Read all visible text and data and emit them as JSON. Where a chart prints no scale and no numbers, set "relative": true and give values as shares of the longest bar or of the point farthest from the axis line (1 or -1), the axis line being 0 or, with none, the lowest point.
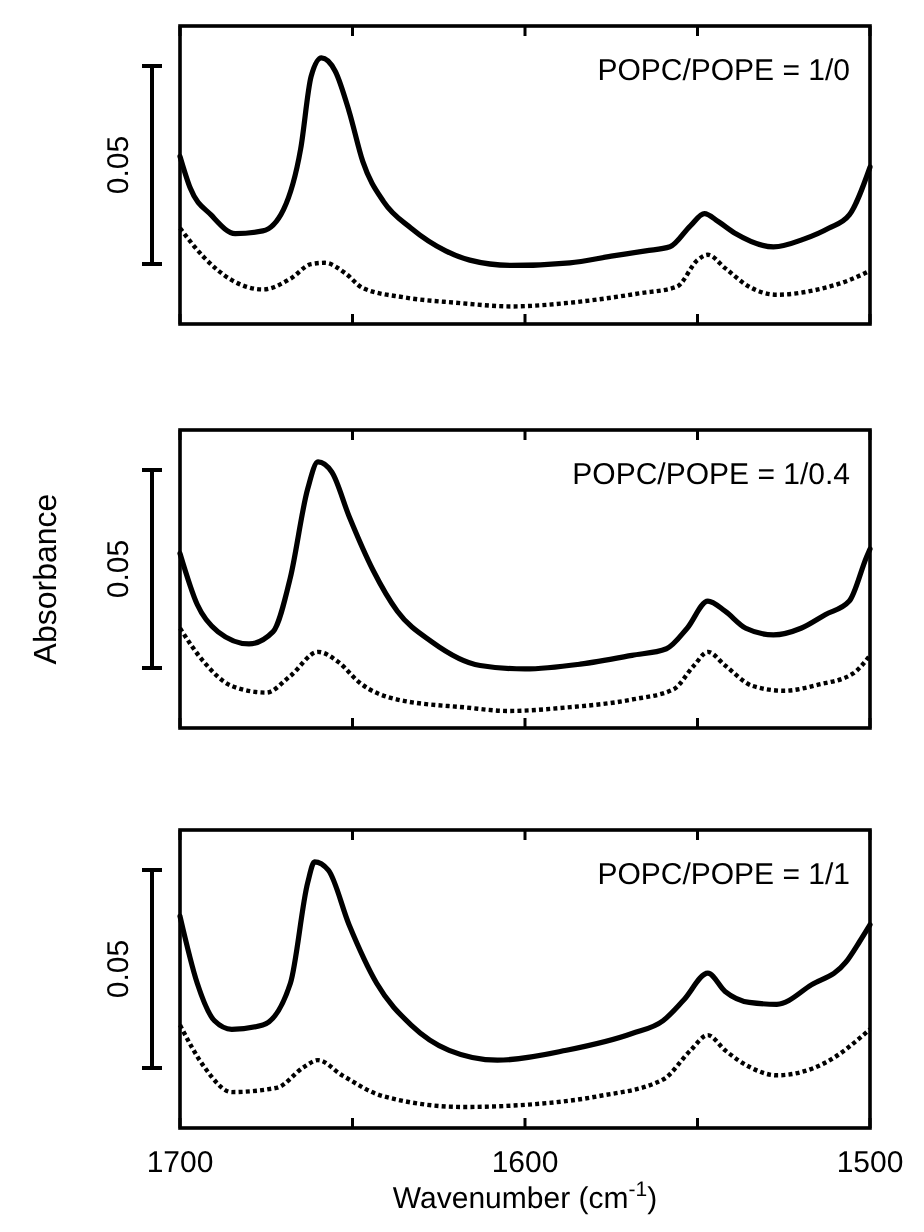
{
  "chart_data": [
    {
      "type": "line",
      "relative": true,
      "xlim": [
        1700,
        1500
      ],
      "xticks": [
        {
          "value": 1700,
          "label": null
        },
        {
          "value": 1650,
          "label": null
        },
        {
          "value": 1600,
          "label": null
        },
        {
          "value": 1550,
          "label": null
        },
        {
          "value": 1500,
          "label": null
        }
      ],
      "tick_labels": false,
      "annotations": [
        "POPC/POPE = 1/0",
        "0.05"
      ],
      "series": [
        {
          "color": "#000000",
          "line_style": "solid",
          "x": [
            1700,
            1697,
            1691,
            1684,
            1676,
            1670,
            1665,
            1662,
            1659,
            1655,
            1651,
            1647,
            1641,
            1633,
            1623,
            1616,
            1604,
            1587,
            1575,
            1565,
            1558,
            1552,
            1548,
            1544,
            1539,
            1528,
            1519,
            1512,
            1506,
            1500
          ],
          "values": [
            0.63,
            0.51,
            0.41,
            0.34,
            0.35,
            0.43,
            0.66,
            0.93,
            1.0,
            0.95,
            0.8,
            0.61,
            0.46,
            0.36,
            0.275,
            0.24,
            0.22,
            0.23,
            0.255,
            0.275,
            0.29,
            0.37,
            0.415,
            0.385,
            0.34,
            0.29,
            0.32,
            0.36,
            0.41,
            0.59
          ]
        },
        {
          "color": "#000000",
          "line_style": "dotted",
          "x": [
            1700,
            1693,
            1685,
            1676,
            1668,
            1662,
            1658,
            1652,
            1647,
            1635,
            1620,
            1604,
            1587,
            1567,
            1556,
            1550,
            1547,
            1542,
            1535,
            1527,
            1515,
            1506,
            1500
          ],
          "values": [
            0.36,
            0.25,
            0.165,
            0.13,
            0.17,
            0.225,
            0.23,
            0.19,
            0.135,
            0.1,
            0.08,
            0.066,
            0.08,
            0.115,
            0.14,
            0.24,
            0.26,
            0.21,
            0.14,
            0.11,
            0.13,
            0.165,
            0.2
          ]
        }
      ]
    },
    {
      "type": "line",
      "relative": true,
      "ylabel": "Absorbance",
      "xlim": [
        1700,
        1500
      ],
      "xticks": [
        {
          "value": 1700,
          "label": null
        },
        {
          "value": 1650,
          "label": null
        },
        {
          "value": 1600,
          "label": null
        },
        {
          "value": 1550,
          "label": null
        },
        {
          "value": 1500,
          "label": null
        }
      ],
      "tick_labels": false,
      "annotations": [
        "POPC/POPE = 1/0.4",
        "0.05"
      ],
      "series": [
        {
          "color": "#000000",
          "line_style": "solid",
          "x": [
            1700,
            1695,
            1689,
            1680,
            1673,
            1668,
            1663,
            1660,
            1656,
            1651,
            1644,
            1637,
            1627,
            1613,
            1600,
            1584,
            1569,
            1559,
            1553,
            1547,
            1542,
            1536,
            1528,
            1520,
            1513,
            1506,
            1501,
            1500
          ],
          "values": [
            0.656,
            0.464,
            0.362,
            0.316,
            0.362,
            0.566,
            0.898,
            1.0,
            0.962,
            0.796,
            0.592,
            0.439,
            0.324,
            0.235,
            0.222,
            0.24,
            0.273,
            0.298,
            0.375,
            0.477,
            0.439,
            0.375,
            0.35,
            0.375,
            0.426,
            0.477,
            0.643,
            0.673
          ]
        },
        {
          "color": "#000000",
          "line_style": "dotted",
          "x": [
            1700,
            1693,
            1685,
            1675,
            1668,
            1660,
            1654,
            1648,
            1637,
            1617,
            1605,
            1588,
            1569,
            1557,
            1551,
            1547,
            1542,
            1534,
            1525,
            1515,
            1505,
            1500
          ],
          "values": [
            0.375,
            0.247,
            0.158,
            0.133,
            0.196,
            0.286,
            0.247,
            0.171,
            0.107,
            0.077,
            0.064,
            0.077,
            0.107,
            0.145,
            0.235,
            0.286,
            0.235,
            0.158,
            0.14,
            0.163,
            0.204,
            0.273
          ]
        }
      ]
    },
    {
      "type": "line",
      "relative": true,
      "xlabel": "Wavenumber (cm$^{-1}$)",
      "xlim": [
        1700,
        1500
      ],
      "xticks": [
        1700,
        {
          "value": 1650,
          "label": null
        },
        1600,
        {
          "value": 1550,
          "label": null
        },
        1500
      ],
      "tick_labels": "x",
      "annotations": [
        "POPC/POPE = 1/1",
        "0.05"
      ],
      "series": [
        {
          "color": "#000000",
          "line_style": "solid",
          "x": [
            1700,
            1695,
            1690,
            1685,
            1676,
            1668,
            1663,
            1661,
            1657,
            1651,
            1643,
            1633,
            1622,
            1608,
            1588,
            1569,
            1560,
            1554,
            1547,
            1542,
            1535,
            1527,
            1517,
            1507,
            1503,
            1500
          ],
          "values": [
            0.796,
            0.544,
            0.403,
            0.371,
            0.387,
            0.544,
            0.921,
            1.0,
            0.969,
            0.764,
            0.544,
            0.387,
            0.292,
            0.255,
            0.292,
            0.355,
            0.403,
            0.481,
            0.582,
            0.513,
            0.472,
            0.465,
            0.538,
            0.623,
            0.701,
            0.764
          ]
        },
        {
          "color": "#000000",
          "line_style": "dotted",
          "x": [
            1700,
            1693,
            1685,
            1672,
            1664,
            1660,
            1653,
            1641,
            1618,
            1599,
            1579,
            1560,
            1552,
            1547,
            1542,
            1535,
            1527,
            1513,
            1500
          ],
          "values": [
            0.387,
            0.23,
            0.135,
            0.151,
            0.23,
            0.255,
            0.198,
            0.119,
            0.079,
            0.088,
            0.119,
            0.182,
            0.292,
            0.349,
            0.292,
            0.23,
            0.198,
            0.245,
            0.371
          ]
        }
      ]
    }
  ]
}
